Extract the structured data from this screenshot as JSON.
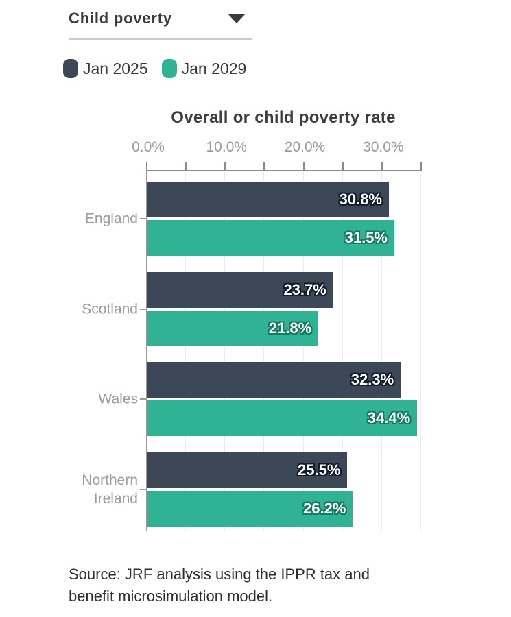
{
  "dropdown": {
    "label": "Child poverty"
  },
  "legend": {
    "items": [
      {
        "label": "Jan 2025",
        "color": "#3c4858"
      },
      {
        "label": "Jan 2029",
        "color": "#2fb394"
      }
    ]
  },
  "chart_data": {
    "type": "bar",
    "orientation": "horizontal",
    "title": "Overall or child poverty rate",
    "categories": [
      "England",
      "Scotland",
      "Wales",
      "Northern Ireland"
    ],
    "series": [
      {
        "name": "Jan 2025",
        "color": "#3c4858",
        "label_outline": "#141d2b",
        "values": [
          30.8,
          23.7,
          32.3,
          25.5
        ],
        "value_labels": [
          "30.8%",
          "23.7%",
          "32.3%",
          "25.5%"
        ]
      },
      {
        "name": "Jan 2029",
        "color": "#2fb394",
        "label_outline": "#177a62",
        "values": [
          31.5,
          21.8,
          34.4,
          26.2
        ],
        "value_labels": [
          "31.5%",
          "21.8%",
          "34.4%",
          "26.2%"
        ]
      }
    ],
    "x_axis": {
      "range": [
        0,
        35
      ],
      "minor_tick_step": 5,
      "labeled_ticks": [
        {
          "value": 0,
          "label": "0.0%"
        },
        {
          "value": 10,
          "label": "10.0%"
        },
        {
          "value": 20,
          "label": "20.0%"
        },
        {
          "value": 30,
          "label": "30.0%"
        }
      ]
    },
    "grid": true,
    "legend_position": "top-left",
    "xlabel": "",
    "ylabel": ""
  },
  "source": {
    "text": "Source: JRF analysis using the IPPR tax and\nbenefit microsimulation model."
  }
}
